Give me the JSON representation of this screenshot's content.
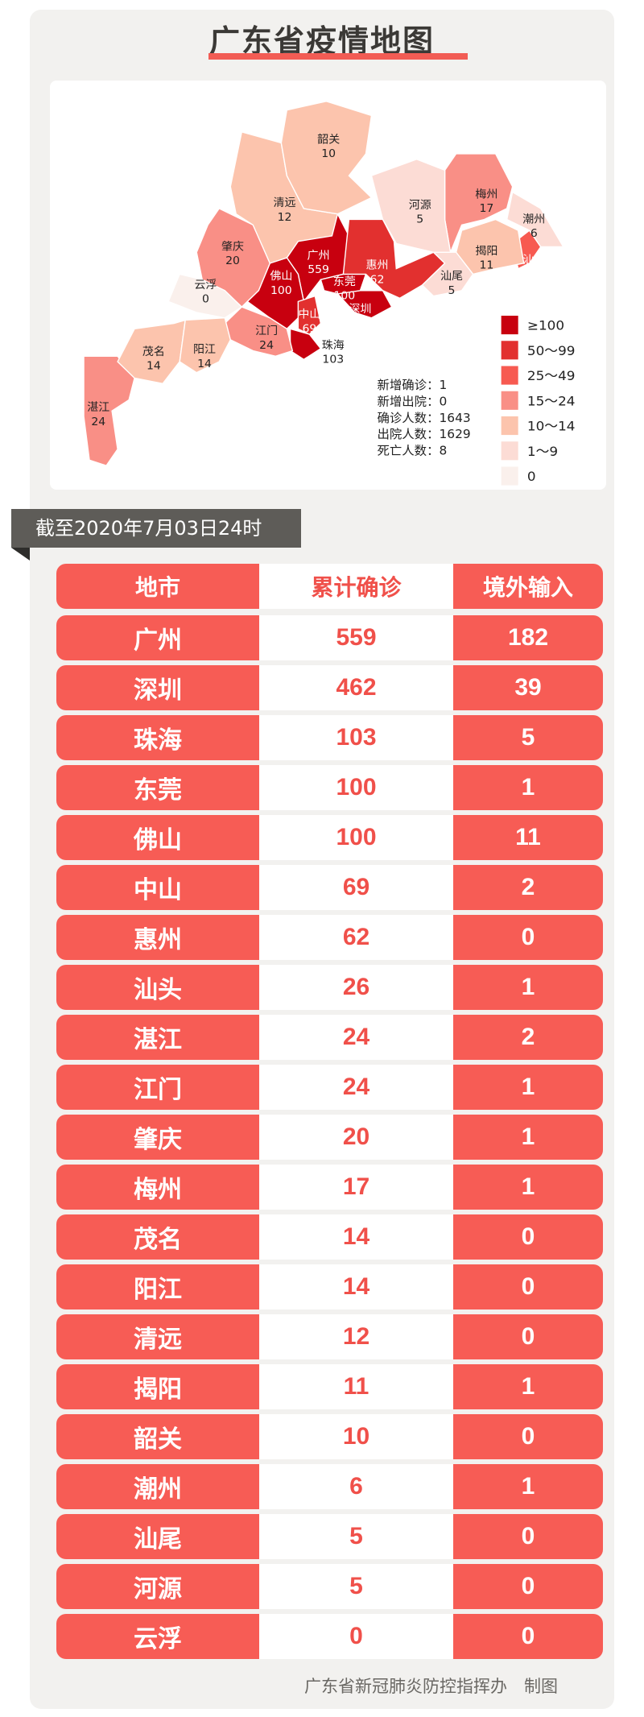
{
  "title": "广东省疫情地图",
  "date_banner": "截至2020年7月03日24时",
  "footer": "广东省新冠肺炎防控指挥办　制图",
  "stats": [
    {
      "label": "新增确诊",
      "value": "1"
    },
    {
      "label": "新增出院",
      "value": "0"
    },
    {
      "label": "确诊人数",
      "value": "1643"
    },
    {
      "label": "出院人数",
      "value": "1629"
    },
    {
      "label": "死亡人数",
      "value": "8"
    }
  ],
  "legend": [
    {
      "label": "≥100",
      "color": "#c8000f"
    },
    {
      "label": "50～99",
      "color": "#e2302f"
    },
    {
      "label": "25～49",
      "color": "#f75a51"
    },
    {
      "label": "15～24",
      "color": "#f98f86"
    },
    {
      "label": "10～14",
      "color": "#fcc4ad"
    },
    {
      "label": "1～9",
      "color": "#fcdcd5"
    },
    {
      "label": "0",
      "color": "#faf0ec"
    }
  ],
  "table": {
    "headers": [
      "地市",
      "累计确诊",
      "境外输入"
    ],
    "rows": [
      [
        "广州",
        "559",
        "182"
      ],
      [
        "深圳",
        "462",
        "39"
      ],
      [
        "珠海",
        "103",
        "5"
      ],
      [
        "东莞",
        "100",
        "1"
      ],
      [
        "佛山",
        "100",
        "11"
      ],
      [
        "中山",
        "69",
        "2"
      ],
      [
        "惠州",
        "62",
        "0"
      ],
      [
        "汕头",
        "26",
        "1"
      ],
      [
        "湛江",
        "24",
        "2"
      ],
      [
        "江门",
        "24",
        "1"
      ],
      [
        "肇庆",
        "20",
        "1"
      ],
      [
        "梅州",
        "17",
        "1"
      ],
      [
        "茂名",
        "14",
        "0"
      ],
      [
        "阳江",
        "14",
        "0"
      ],
      [
        "清远",
        "12",
        "0"
      ],
      [
        "揭阳",
        "11",
        "1"
      ],
      [
        "韶关",
        "10",
        "0"
      ],
      [
        "潮州",
        "6",
        "1"
      ],
      [
        "汕尾",
        "5",
        "0"
      ],
      [
        "河源",
        "5",
        "0"
      ],
      [
        "云浮",
        "0",
        "0"
      ]
    ]
  },
  "chart_data": {
    "type": "choropleth-map",
    "title": "广东省疫情地图",
    "regions": [
      {
        "name": "广州",
        "value": 559
      },
      {
        "name": "深圳",
        "value": 462
      },
      {
        "name": "珠海",
        "value": 103
      },
      {
        "name": "东莞",
        "value": 100
      },
      {
        "name": "佛山",
        "value": 100
      },
      {
        "name": "中山",
        "value": 69
      },
      {
        "name": "惠州",
        "value": 62
      },
      {
        "name": "汕头",
        "value": 26
      },
      {
        "name": "湛江",
        "value": 24
      },
      {
        "name": "江门",
        "value": 24
      },
      {
        "name": "肇庆",
        "value": 20
      },
      {
        "name": "梅州",
        "value": 17
      },
      {
        "name": "茂名",
        "value": 14
      },
      {
        "name": "阳江",
        "value": 14
      },
      {
        "name": "清远",
        "value": 12
      },
      {
        "name": "揭阳",
        "value": 11
      },
      {
        "name": "韶关",
        "value": 10
      },
      {
        "name": "潮州",
        "value": 6
      },
      {
        "name": "汕尾",
        "value": 5
      },
      {
        "name": "河源",
        "value": 5
      },
      {
        "name": "云浮",
        "value": 0
      }
    ],
    "legend_placement": "bottom-right"
  }
}
